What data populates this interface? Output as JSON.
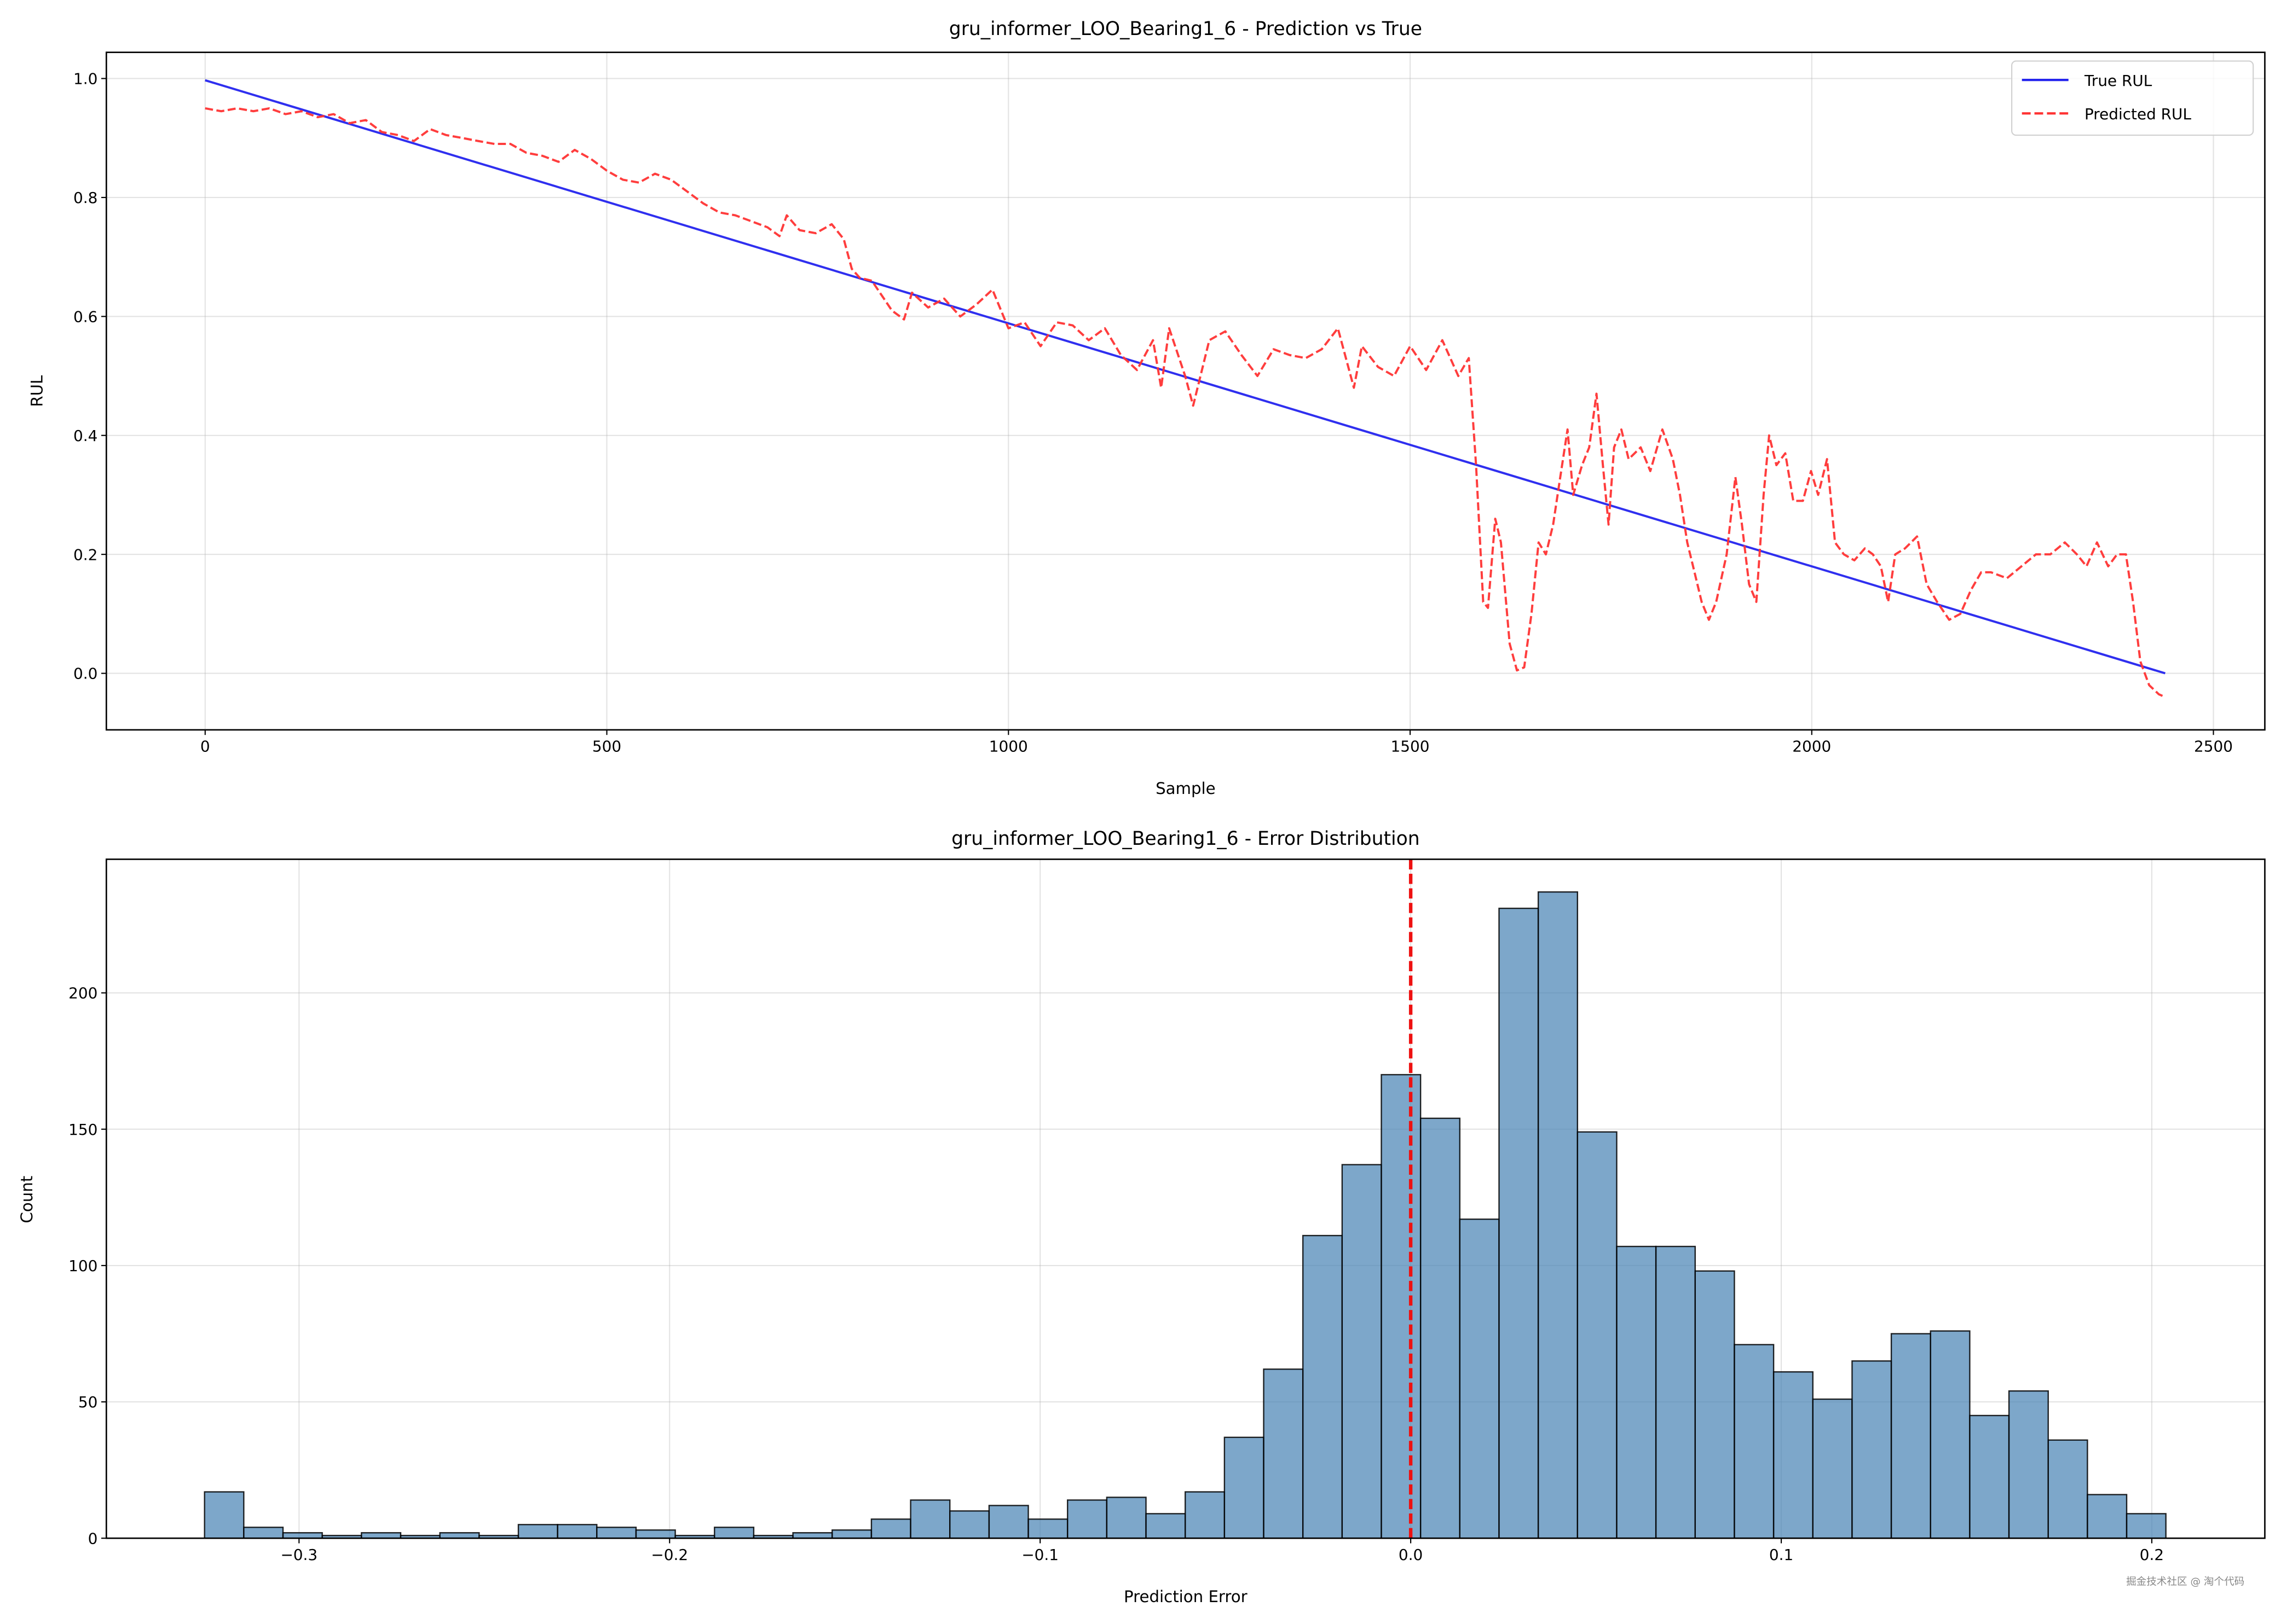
{
  "chart_data": [
    {
      "type": "line",
      "title": "gru_informer_LOO_Bearing1_6 - Prediction vs True",
      "xlabel": "Sample",
      "ylabel": "RUL",
      "xlim": [
        -123,
        2564
      ],
      "ylim": [
        -0.095,
        1.044
      ],
      "xticks": [
        0,
        500,
        1000,
        1500,
        2000,
        2500
      ],
      "xtick_labels": [
        "0",
        "500",
        "1000",
        "1500",
        "2000",
        "2500"
      ],
      "yticks": [
        0.0,
        0.2,
        0.4,
        0.6,
        0.8,
        1.0
      ],
      "ytick_labels": [
        "0.0",
        "0.2",
        "0.4",
        "0.6",
        "0.8",
        "1.0"
      ],
      "grid": true,
      "legend": {
        "placement": "top-right",
        "entries": [
          "True RUL",
          "Predicted RUL"
        ]
      },
      "series": [
        {
          "name": "True RUL",
          "color": "#2424ee",
          "style": "solid",
          "x": [
            0,
            2440
          ],
          "y": [
            0.997,
            0.0
          ]
        },
        {
          "name": "Predicted RUL",
          "color": "#ff3333",
          "style": "dashed",
          "x": [
            0,
            20,
            40,
            60,
            80,
            100,
            120,
            140,
            160,
            180,
            200,
            220,
            240,
            260,
            280,
            300,
            320,
            340,
            360,
            380,
            400,
            420,
            440,
            460,
            480,
            500,
            520,
            540,
            560,
            580,
            600,
            620,
            640,
            660,
            680,
            700,
            715,
            724,
            740,
            760,
            780,
            795,
            805,
            815,
            830,
            845,
            855,
            870,
            880,
            900,
            920,
            940,
            960,
            980,
            1000,
            1020,
            1040,
            1060,
            1080,
            1100,
            1120,
            1140,
            1160,
            1180,
            1190,
            1200,
            1220,
            1230,
            1250,
            1270,
            1290,
            1310,
            1330,
            1350,
            1370,
            1390,
            1410,
            1430,
            1440,
            1460,
            1480,
            1500,
            1520,
            1540,
            1560,
            1573,
            1582,
            1591,
            1597,
            1606,
            1613,
            1624,
            1633,
            1642,
            1651,
            1660,
            1669,
            1678,
            1687,
            1696,
            1703,
            1714,
            1723,
            1732,
            1740,
            1747,
            1754,
            1763,
            1772,
            1787,
            1799,
            1814,
            1827,
            1836,
            1845,
            1854,
            1863,
            1872,
            1881,
            1894,
            1905,
            1913,
            1922,
            1931,
            1940,
            1947,
            1956,
            1967,
            1977,
            1989,
            1999,
            2008,
            2019,
            2029,
            2040,
            2053,
            2066,
            2076,
            2086,
            2095,
            2104,
            2116,
            2131,
            2143,
            2156,
            2171,
            2185,
            2198,
            2211,
            2223,
            2243,
            2261,
            2279,
            2297,
            2315,
            2330,
            2342,
            2355,
            2369,
            2380,
            2391,
            2400,
            2409,
            2420,
            2432,
            2440
          ],
          "y": [
            0.95,
            0.945,
            0.95,
            0.945,
            0.95,
            0.94,
            0.945,
            0.935,
            0.94,
            0.925,
            0.93,
            0.91,
            0.905,
            0.895,
            0.915,
            0.905,
            0.9,
            0.895,
            0.89,
            0.89,
            0.875,
            0.87,
            0.86,
            0.88,
            0.865,
            0.845,
            0.83,
            0.825,
            0.84,
            0.83,
            0.81,
            0.79,
            0.775,
            0.77,
            0.76,
            0.75,
            0.735,
            0.77,
            0.745,
            0.74,
            0.755,
            0.73,
            0.68,
            0.665,
            0.66,
            0.63,
            0.61,
            0.595,
            0.64,
            0.615,
            0.63,
            0.6,
            0.62,
            0.645,
            0.58,
            0.59,
            0.55,
            0.59,
            0.585,
            0.56,
            0.58,
            0.535,
            0.51,
            0.56,
            0.48,
            0.58,
            0.5,
            0.45,
            0.56,
            0.575,
            0.535,
            0.5,
            0.545,
            0.535,
            0.53,
            0.545,
            0.58,
            0.48,
            0.55,
            0.515,
            0.5,
            0.55,
            0.51,
            0.56,
            0.5,
            0.53,
            0.35,
            0.12,
            0.11,
            0.26,
            0.22,
            0.05,
            0.005,
            0.01,
            0.1,
            0.22,
            0.2,
            0.25,
            0.33,
            0.41,
            0.3,
            0.35,
            0.38,
            0.47,
            0.35,
            0.25,
            0.38,
            0.41,
            0.36,
            0.38,
            0.34,
            0.41,
            0.36,
            0.3,
            0.22,
            0.17,
            0.12,
            0.09,
            0.12,
            0.2,
            0.33,
            0.25,
            0.15,
            0.12,
            0.3,
            0.4,
            0.35,
            0.37,
            0.29,
            0.29,
            0.34,
            0.3,
            0.36,
            0.22,
            0.2,
            0.19,
            0.21,
            0.2,
            0.18,
            0.12,
            0.2,
            0.21,
            0.23,
            0.15,
            0.12,
            0.09,
            0.1,
            0.14,
            0.17,
            0.17,
            0.16,
            0.18,
            0.2,
            0.2,
            0.22,
            0.2,
            0.18,
            0.22,
            0.18,
            0.2,
            0.2,
            0.12,
            0.02,
            -0.02,
            -0.035,
            -0.04
          ]
        }
      ]
    },
    {
      "type": "bar",
      "subtype": "histogram",
      "title": "gru_informer_LOO_Bearing1_6 - Error Distribution",
      "xlabel": "Prediction Error",
      "ylabel": "Count",
      "xlim": [
        -0.352,
        0.2305
      ],
      "ylim": [
        0,
        249
      ],
      "xticks": [
        -0.3,
        -0.2,
        -0.1,
        0.0,
        0.1,
        0.2
      ],
      "xtick_labels": [
        "−0.3",
        "−0.2",
        "−0.1",
        "0.0",
        "0.1",
        "0.2"
      ],
      "yticks": [
        0,
        50,
        100,
        150,
        200
      ],
      "ytick_labels": [
        "0",
        "50",
        "100",
        "150",
        "200"
      ],
      "grid": true,
      "bin_start": -0.3255,
      "bin_width": 0.010586,
      "bar_color": "#4682b4",
      "counts": [
        17,
        4,
        2,
        1,
        2,
        1,
        2,
        1,
        5,
        5,
        4,
        3,
        1,
        4,
        1,
        2,
        3,
        7,
        14,
        10,
        12,
        7,
        14,
        15,
        9,
        17,
        37,
        62,
        111,
        137,
        170,
        154,
        117,
        231,
        237,
        149,
        107,
        107,
        98,
        71,
        61,
        51,
        65,
        75,
        76,
        45,
        54,
        36,
        16,
        9
      ],
      "reference_line": {
        "x": 0.0,
        "color": "#ee1111",
        "style": "dashed"
      }
    }
  ],
  "watermark": "掘金技术社区 @ 淘个代码"
}
